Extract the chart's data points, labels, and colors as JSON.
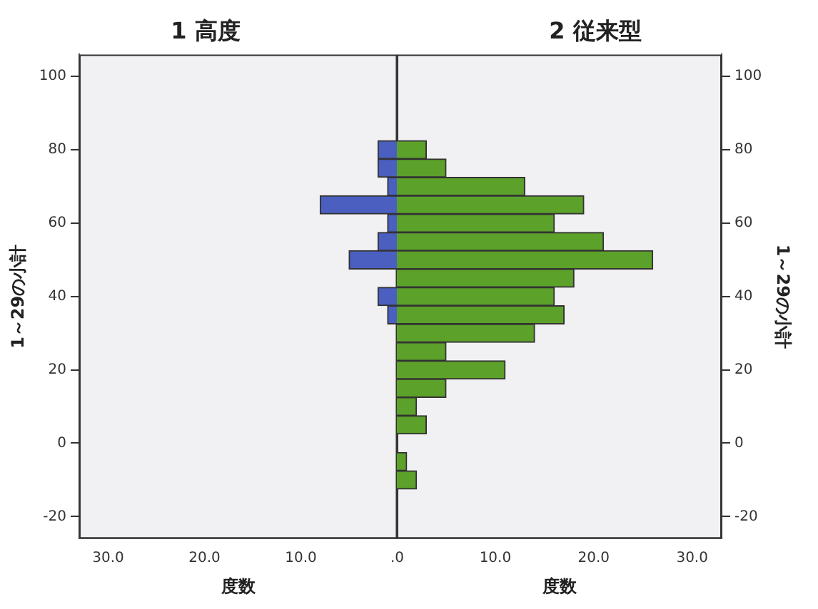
{
  "chart_data": [
    {
      "type": "histogram",
      "orientation": "horizontal",
      "title": "1 高度",
      "xlabel": "度数",
      "ylabel": "1～29の小計",
      "bins": [
        82.5,
        77.5,
        72.5,
        67.5,
        62.5,
        57.5,
        52.5,
        47.5,
        42.5,
        37.5,
        32.5,
        27.5,
        22.5,
        17.5,
        12.5,
        7.5,
        2.5,
        -2.5,
        -7.5,
        -12.5
      ],
      "series": [
        {
          "color": "#4a5fc0",
          "values": [
            2,
            2,
            1,
            8,
            1,
            2,
            5,
            0,
            2,
            1,
            0,
            0,
            0,
            0,
            0,
            0,
            0,
            0,
            0
          ]
        }
      ],
      "xlim": [
        33,
        0
      ],
      "xticks": [
        {
          "value": 30,
          "label": "30.0"
        },
        {
          "value": 20,
          "label": "20.0"
        },
        {
          "value": 10,
          "label": "10.0"
        },
        {
          "value": 0,
          "label": ".0"
        }
      ],
      "ylim": [
        -26,
        106
      ],
      "yticks": [
        -20,
        0,
        20,
        40,
        60,
        80,
        100
      ],
      "grid": false
    },
    {
      "type": "histogram",
      "orientation": "horizontal",
      "title": "2 従来型",
      "xlabel": "度数",
      "ylabel": "1～29の小計",
      "bins": [
        82.5,
        77.5,
        72.5,
        67.5,
        62.5,
        57.5,
        52.5,
        47.5,
        42.5,
        37.5,
        32.5,
        27.5,
        22.5,
        17.5,
        12.5,
        7.5,
        2.5,
        -2.5,
        -7.5,
        -12.5
      ],
      "series": [
        {
          "color": "#5ca12a",
          "values": [
            3,
            5,
            13,
            19,
            16,
            21,
            26,
            18,
            16,
            17,
            14,
            5,
            11,
            5,
            2,
            3,
            0,
            1,
            2
          ]
        }
      ],
      "xlim": [
        0,
        33
      ],
      "xticks": [
        {
          "value": 0,
          "label": null
        },
        {
          "value": 10,
          "label": "10.0"
        },
        {
          "value": 20,
          "label": "20.0"
        },
        {
          "value": 30,
          "label": "30.0"
        }
      ],
      "ylim": [
        -26,
        106
      ],
      "yticks": [
        -20,
        0,
        20,
        40,
        60,
        80,
        100
      ],
      "grid": false
    }
  ]
}
